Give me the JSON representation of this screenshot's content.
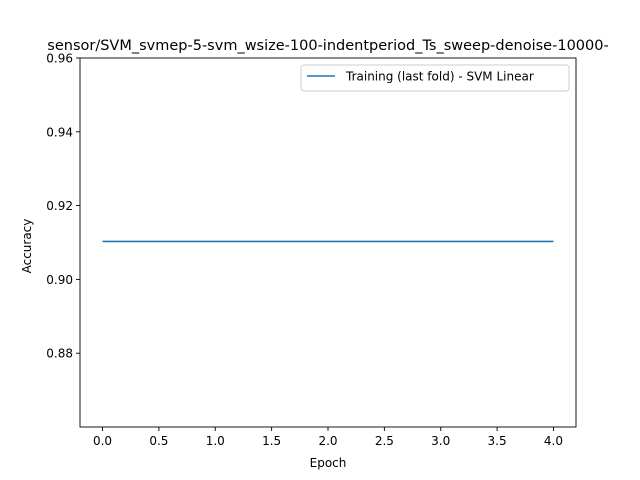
{
  "chart_data": {
    "type": "line",
    "title": "sensor/SVM_svmep-5-svm_wsize-100-indentperiod_Ts_sweep-denoise-10000-",
    "xlabel": "Epoch",
    "ylabel": "Accuracy",
    "xlim": [
      -0.2,
      4.2
    ],
    "ylim": [
      0.86,
      0.96
    ],
    "xticks": [
      0.0,
      0.5,
      1.0,
      1.5,
      2.0,
      2.5,
      3.0,
      3.5,
      4.0
    ],
    "xtick_labels": [
      "0.0",
      "0.5",
      "1.0",
      "1.5",
      "2.0",
      "2.5",
      "3.0",
      "3.5",
      "4.0"
    ],
    "yticks": [
      0.88,
      0.9,
      0.92,
      0.94,
      0.96
    ],
    "ytick_labels": [
      "0.88",
      "0.90",
      "0.92",
      "0.94",
      "0.96"
    ],
    "grid": false,
    "legend_position": "upper right",
    "series": [
      {
        "name": "Training (last fold) - SVM Linear",
        "color": "#1f77b4",
        "x": [
          0,
          1,
          2,
          3,
          4
        ],
        "y": [
          0.9103,
          0.9103,
          0.9103,
          0.9103,
          0.9103
        ]
      }
    ]
  }
}
